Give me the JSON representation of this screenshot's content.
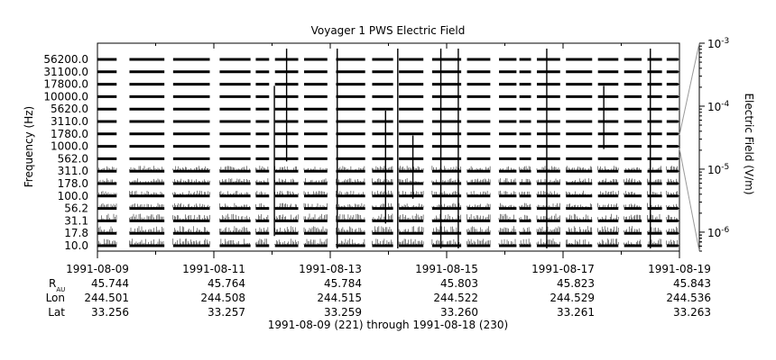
{
  "title": "Voyager 1 PWS Electric Field",
  "date_range": "1991-08-09 (221) through 1991-08-18 (230)",
  "ephemeris": {
    "labels": {
      "rau_main": "R",
      "rau_sub": "AU",
      "lon": "Lon",
      "lat": "Lat"
    },
    "columns": [
      {
        "date": "1991-08-09",
        "rau": "45.744",
        "lon": "244.501",
        "lat": "33.256"
      },
      {
        "date": "1991-08-11",
        "rau": "45.764",
        "lon": "244.508",
        "lat": "33.257"
      },
      {
        "date": "1991-08-13",
        "rau": "45.784",
        "lon": "244.515",
        "lat": "33.259"
      },
      {
        "date": "1991-08-15",
        "rau": "45.803",
        "lon": "244.522",
        "lat": "33.260"
      },
      {
        "date": "1991-08-17",
        "rau": "45.823",
        "lon": "244.529",
        "lat": "33.261"
      },
      {
        "date": "1991-08-19",
        "rau": "45.843",
        "lon": "244.536",
        "lat": "33.263"
      }
    ]
  },
  "chart_data": {
    "type": "line",
    "title": "Voyager 1 PWS Electric Field",
    "ylabel": "Frequency (Hz)",
    "channels": [
      "56200.0",
      "31100.0",
      "17800.0",
      "10000.0",
      "5620.0",
      "3110.0",
      "1780.0",
      "1000.0",
      "562.0",
      "311.0",
      "178.0",
      "100.0",
      "56.2",
      "31.1",
      "17.8",
      "10.0"
    ],
    "x_range": [
      "1991-08-09",
      "1991-08-19"
    ],
    "x_tick_labels": [
      "1991-08-09",
      "1991-08-11",
      "1991-08-13",
      "1991-08-15",
      "1991-08-17",
      "1991-08-19"
    ],
    "data_segments_days": [
      [
        0.0,
        0.33
      ],
      [
        0.55,
        1.15
      ],
      [
        1.3,
        1.93
      ],
      [
        2.1,
        2.63
      ],
      [
        2.72,
        2.95
      ],
      [
        3.05,
        3.45
      ],
      [
        3.55,
        3.95
      ],
      [
        4.1,
        4.6
      ],
      [
        4.72,
        5.08
      ],
      [
        5.18,
        5.6
      ],
      [
        5.75,
        6.25
      ],
      [
        6.35,
        6.75
      ],
      [
        6.9,
        7.2
      ],
      [
        7.25,
        7.45
      ],
      [
        7.55,
        7.95
      ],
      [
        8.05,
        8.5
      ],
      [
        8.6,
        8.95
      ],
      [
        9.05,
        9.35
      ],
      [
        9.45,
        9.7
      ],
      [
        9.78,
        9.98
      ]
    ],
    "spikes": [
      {
        "day": 3.04,
        "from_channel": "17.8",
        "to_channel": "10000.0"
      },
      {
        "day": 3.25,
        "from_channel": "562.0",
        "to_channel": "56200.0"
      },
      {
        "day": 4.12,
        "from_channel": "10.0",
        "to_channel": "56200.0"
      },
      {
        "day": 5.16,
        "from_channel": "10.0",
        "to_channel": "56200.0"
      },
      {
        "day": 5.42,
        "from_channel": "100.0",
        "to_channel": "1000.0"
      },
      {
        "day": 5.9,
        "from_channel": "10.0",
        "to_channel": "56200.0"
      },
      {
        "day": 6.2,
        "from_channel": "10.0",
        "to_channel": "56200.0"
      },
      {
        "day": 7.72,
        "from_channel": "10.0",
        "to_channel": "56200.0"
      },
      {
        "day": 9.5,
        "from_channel": "10.0",
        "to_channel": "56200.0"
      },
      {
        "day": 4.95,
        "from_channel": "31.1",
        "to_channel": "3110.0"
      },
      {
        "day": 8.7,
        "from_channel": "1000.0",
        "to_channel": "10000.0"
      }
    ],
    "y2label": "Electric Field (V/m)",
    "y2_scale": "log",
    "y2_range": [
      5e-07,
      0.001
    ],
    "y2_ticks": [
      {
        "value": 0.001,
        "mantissa": "10",
        "exponent": "-3"
      },
      {
        "value": 0.0001,
        "mantissa": "10",
        "exponent": "-4"
      },
      {
        "value": 1e-05,
        "mantissa": "10",
        "exponent": "-5"
      },
      {
        "value": 1e-06,
        "mantissa": "10",
        "exponent": "-6"
      }
    ]
  }
}
